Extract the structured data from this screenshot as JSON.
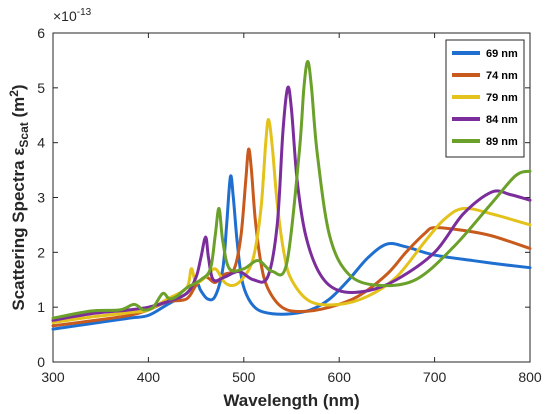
{
  "chart_data": {
    "type": "line",
    "ylabel_main": "Scattering Spectra ε",
    "ylabel_sub": "Scat",
    "ylabel_unit": " (m",
    "ylabel_unit_sup": "2",
    "ylabel_close": ")",
    "xlabel": "Wavelength (nm)",
    "y_exponent_base": "×10",
    "y_exponent_power": "-13",
    "xlim": [
      300,
      800
    ],
    "ylim": [
      0,
      6
    ],
    "xticks": [
      "300",
      "400",
      "500",
      "600",
      "700",
      "800"
    ],
    "yticks": [
      "0",
      "1",
      "2",
      "3",
      "4",
      "5",
      "6"
    ],
    "grid": false,
    "legend_position": "top-right",
    "series": [
      {
        "name": "69 nm",
        "color": "#1f6fd0",
        "points": [
          [
            300,
            0.6
          ],
          [
            340,
            0.7
          ],
          [
            380,
            0.8
          ],
          [
            400,
            0.85
          ],
          [
            420,
            1.05
          ],
          [
            440,
            1.25
          ],
          [
            450,
            1.45
          ],
          [
            455,
            1.3
          ],
          [
            462,
            1.15
          ],
          [
            470,
            1.2
          ],
          [
            478,
            1.7
          ],
          [
            482,
            2.5
          ],
          [
            486,
            3.38
          ],
          [
            489,
            3.0
          ],
          [
            493,
            2.2
          ],
          [
            498,
            1.5
          ],
          [
            505,
            1.15
          ],
          [
            515,
            0.95
          ],
          [
            530,
            0.88
          ],
          [
            550,
            0.88
          ],
          [
            570,
            0.95
          ],
          [
            590,
            1.15
          ],
          [
            610,
            1.5
          ],
          [
            630,
            1.9
          ],
          [
            650,
            2.15
          ],
          [
            670,
            2.1
          ],
          [
            700,
            1.95
          ],
          [
            740,
            1.85
          ],
          [
            770,
            1.78
          ],
          [
            800,
            1.72
          ]
        ]
      },
      {
        "name": "74 nm",
        "color": "#c75a1c",
        "points": [
          [
            300,
            0.66
          ],
          [
            340,
            0.75
          ],
          [
            380,
            0.85
          ],
          [
            400,
            0.95
          ],
          [
            420,
            1.1
          ],
          [
            440,
            1.15
          ],
          [
            450,
            1.4
          ],
          [
            460,
            1.55
          ],
          [
            470,
            1.45
          ],
          [
            480,
            1.6
          ],
          [
            490,
            1.7
          ],
          [
            497,
            2.3
          ],
          [
            502,
            3.3
          ],
          [
            505,
            3.88
          ],
          [
            508,
            3.5
          ],
          [
            512,
            2.6
          ],
          [
            518,
            1.8
          ],
          [
            525,
            1.35
          ],
          [
            540,
            1.0
          ],
          [
            560,
            0.92
          ],
          [
            590,
            1.0
          ],
          [
            620,
            1.2
          ],
          [
            650,
            1.6
          ],
          [
            670,
            2.0
          ],
          [
            690,
            2.35
          ],
          [
            700,
            2.45
          ],
          [
            730,
            2.4
          ],
          [
            760,
            2.3
          ],
          [
            800,
            2.07
          ]
        ]
      },
      {
        "name": "79 nm",
        "color": "#e3c21c",
        "points": [
          [
            300,
            0.72
          ],
          [
            340,
            0.82
          ],
          [
            380,
            0.9
          ],
          [
            400,
            0.95
          ],
          [
            420,
            1.15
          ],
          [
            440,
            1.35
          ],
          [
            445,
            1.7
          ],
          [
            450,
            1.45
          ],
          [
            460,
            1.55
          ],
          [
            470,
            1.7
          ],
          [
            480,
            1.45
          ],
          [
            490,
            1.4
          ],
          [
            500,
            1.55
          ],
          [
            510,
            1.9
          ],
          [
            518,
            2.8
          ],
          [
            523,
            4.0
          ],
          [
            526,
            4.42
          ],
          [
            530,
            3.9
          ],
          [
            535,
            2.9
          ],
          [
            542,
            2.0
          ],
          [
            550,
            1.5
          ],
          [
            570,
            1.1
          ],
          [
            600,
            1.05
          ],
          [
            630,
            1.2
          ],
          [
            660,
            1.55
          ],
          [
            690,
            2.2
          ],
          [
            710,
            2.6
          ],
          [
            730,
            2.8
          ],
          [
            760,
            2.7
          ],
          [
            800,
            2.5
          ]
        ]
      },
      {
        "name": "84 nm",
        "color": "#7b2d9c",
        "points": [
          [
            300,
            0.76
          ],
          [
            340,
            0.88
          ],
          [
            380,
            0.95
          ],
          [
            400,
            1.0
          ],
          [
            420,
            1.1
          ],
          [
            440,
            1.25
          ],
          [
            450,
            1.55
          ],
          [
            455,
            1.9
          ],
          [
            460,
            2.28
          ],
          [
            463,
            1.9
          ],
          [
            468,
            1.5
          ],
          [
            480,
            1.55
          ],
          [
            495,
            1.65
          ],
          [
            510,
            1.5
          ],
          [
            525,
            1.55
          ],
          [
            535,
            2.5
          ],
          [
            541,
            4.2
          ],
          [
            546,
            5.0
          ],
          [
            550,
            4.6
          ],
          [
            556,
            3.3
          ],
          [
            565,
            2.3
          ],
          [
            580,
            1.6
          ],
          [
            600,
            1.3
          ],
          [
            630,
            1.3
          ],
          [
            660,
            1.5
          ],
          [
            700,
            2.0
          ],
          [
            730,
            2.7
          ],
          [
            760,
            3.1
          ],
          [
            780,
            3.05
          ],
          [
            800,
            2.95
          ]
        ]
      },
      {
        "name": "89 nm",
        "color": "#6ba02a",
        "points": [
          [
            300,
            0.8
          ],
          [
            340,
            0.93
          ],
          [
            370,
            0.95
          ],
          [
            385,
            1.05
          ],
          [
            395,
            0.95
          ],
          [
            405,
            1.0
          ],
          [
            415,
            1.25
          ],
          [
            422,
            1.15
          ],
          [
            430,
            1.2
          ],
          [
            440,
            1.35
          ],
          [
            455,
            1.5
          ],
          [
            465,
            1.7
          ],
          [
            470,
            2.3
          ],
          [
            474,
            2.8
          ],
          [
            478,
            2.2
          ],
          [
            485,
            1.7
          ],
          [
            500,
            1.7
          ],
          [
            515,
            1.85
          ],
          [
            530,
            1.65
          ],
          [
            545,
            1.8
          ],
          [
            558,
            3.8
          ],
          [
            563,
            5.0
          ],
          [
            567,
            5.48
          ],
          [
            571,
            5.0
          ],
          [
            577,
            3.8
          ],
          [
            590,
            2.3
          ],
          [
            610,
            1.6
          ],
          [
            640,
            1.4
          ],
          [
            680,
            1.5
          ],
          [
            720,
            2.1
          ],
          [
            760,
            2.9
          ],
          [
            785,
            3.4
          ],
          [
            800,
            3.48
          ]
        ]
      }
    ]
  }
}
